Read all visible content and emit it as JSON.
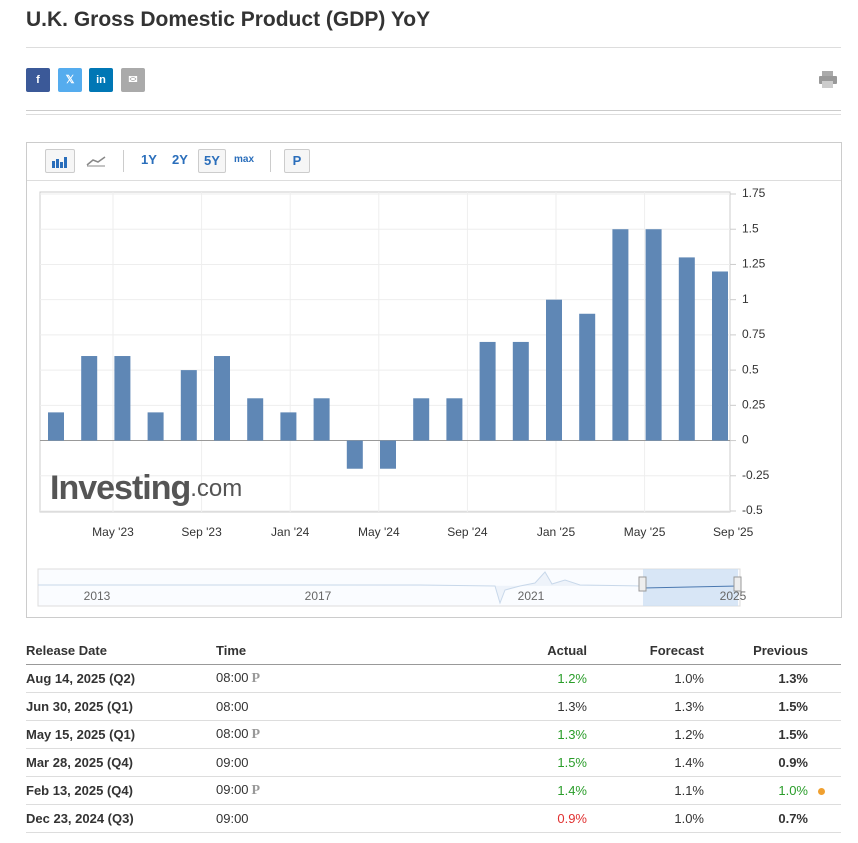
{
  "header": {
    "title": "U.K. Gross Domestic Product (GDP) YoY"
  },
  "toolbar": {
    "ranges": [
      "1Y",
      "2Y",
      "5Y",
      "max"
    ],
    "p_button": "P"
  },
  "chart_data": {
    "type": "bar",
    "values": [
      0.2,
      0.6,
      0.6,
      0.2,
      0.5,
      0.6,
      0.3,
      0.2,
      0.3,
      -0.2,
      -0.2,
      0.3,
      0.3,
      0.7,
      0.7,
      1.0,
      0.9,
      1.5,
      1.5,
      1.3,
      1.2
    ],
    "color": "#5f87b5",
    "ylim": [
      -0.5,
      1.75
    ],
    "yticks": [
      -0.5,
      -0.25,
      0,
      0.25,
      0.5,
      0.75,
      1,
      1.25,
      1.5,
      1.75
    ],
    "xtick_labels": [
      "May '23",
      "Sep '23",
      "Jan '24",
      "May '24",
      "Sep '24",
      "Jan '25",
      "May '25",
      "Sep '25"
    ],
    "grid": true,
    "watermark": [
      "Investing",
      ".com"
    ],
    "navigator_labels": [
      "2013",
      "2017",
      "2021",
      "2025"
    ]
  },
  "table": {
    "headers": [
      "Release Date",
      "Time",
      "Actual",
      "Forecast",
      "Previous"
    ],
    "rows": [
      {
        "date": "Aug 14, 2025 (Q2)",
        "time": "08:00",
        "preliminary": true,
        "actual": "1.2%",
        "actual_color": "#2a9d2a",
        "forecast": "1.0%",
        "previous": "1.3%",
        "previous_color": "#333",
        "revised": false
      },
      {
        "date": "Jun 30, 2025 (Q1)",
        "time": "08:00",
        "preliminary": false,
        "actual": "1.3%",
        "actual_color": "#333",
        "forecast": "1.3%",
        "previous": "1.5%",
        "previous_color": "#333",
        "revised": false
      },
      {
        "date": "May 15, 2025 (Q1)",
        "time": "08:00",
        "preliminary": true,
        "actual": "1.3%",
        "actual_color": "#2a9d2a",
        "forecast": "1.2%",
        "previous": "1.5%",
        "previous_color": "#333",
        "revised": false
      },
      {
        "date": "Mar 28, 2025 (Q4)",
        "time": "09:00",
        "preliminary": false,
        "actual": "1.5%",
        "actual_color": "#2a9d2a",
        "forecast": "1.4%",
        "previous": "0.9%",
        "previous_color": "#333",
        "revised": false
      },
      {
        "date": "Feb 13, 2025 (Q4)",
        "time": "09:00",
        "preliminary": true,
        "actual": "1.4%",
        "actual_color": "#2a9d2a",
        "forecast": "1.1%",
        "previous": "1.0%",
        "previous_color": "#2a9d2a",
        "revised": true
      },
      {
        "date": "Dec 23, 2024 (Q3)",
        "time": "09:00",
        "preliminary": false,
        "actual": "0.9%",
        "actual_color": "#e03030",
        "forecast": "1.0%",
        "previous": "0.7%",
        "previous_color": "#333",
        "revised": false
      }
    ]
  }
}
